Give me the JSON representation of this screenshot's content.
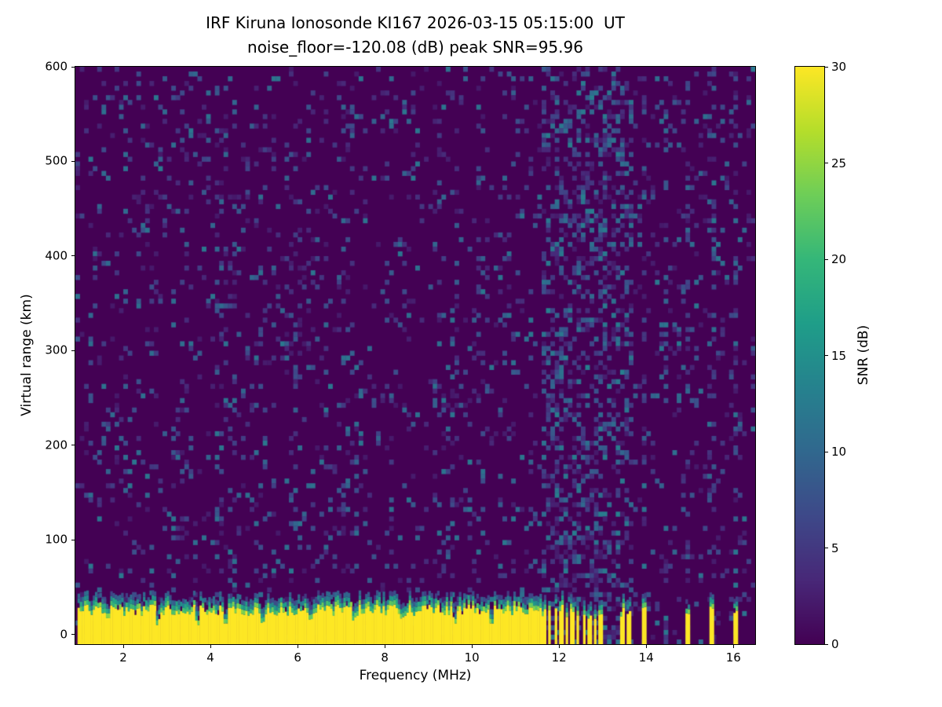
{
  "chart_data": {
    "type": "heatmap",
    "title": "IRF Kiruna Ionosonde KI167 2026-03-15 05:15:00  UT",
    "subtitle": "noise_floor=-120.08 (dB) peak SNR=95.96",
    "xlabel": "Frequency (MHz)",
    "ylabel": "Virtual range (km)",
    "station": "KI167",
    "timestamp_ut": "2026-03-15 05:15:00",
    "noise_floor_db": -120.08,
    "peak_snr_db": 95.96,
    "x_range": [
      0.9,
      16.5
    ],
    "y_range": [
      -10,
      600
    ],
    "x_ticks": [
      2,
      4,
      6,
      8,
      10,
      12,
      14,
      16
    ],
    "y_ticks": [
      0,
      100,
      200,
      300,
      400,
      500,
      600
    ],
    "colorbar": {
      "label": "SNR (dB)",
      "range": [
        0,
        30
      ],
      "ticks": [
        0,
        5,
        10,
        15,
        20,
        25,
        30
      ]
    },
    "colormap": {
      "name": "viridis",
      "stops": [
        "#440154",
        "#482878",
        "#3e4989",
        "#31688e",
        "#26828e",
        "#1f9e89",
        "#35b779",
        "#6ece58",
        "#b5de2b",
        "#fde725"
      ]
    },
    "background_value_db": 0,
    "noise": {
      "seed": 42,
      "density": 0.1,
      "snr_min": 2,
      "snr_max": 12
    },
    "ground_echo": {
      "description": "saturated ground/transmitter return band at low virtual range",
      "freq_start": 0.95,
      "freq_end": 11.62,
      "top_km_base": 26,
      "top_km_jitter": 6,
      "fringe_km": 17,
      "notches": [
        1.65,
        2.8,
        3.7,
        4.35,
        5.2,
        6.3,
        7.3,
        8.4,
        9.6,
        10.45
      ],
      "comb_start": 11.62,
      "comb_end": 13.05,
      "comb_period_mhz": 0.13,
      "comb_duty": 0.54,
      "isolated_bars": [
        13.45,
        13.6,
        13.95,
        14.95,
        15.5,
        16.05
      ]
    },
    "interference": {
      "band": [
        11.62,
        13.45
      ],
      "band_noise_density": 0.36,
      "columns": [
        13.45,
        13.6,
        13.95,
        14.45,
        14.95,
        15.5,
        16.05
      ],
      "column_noise_density": 0.28,
      "faint_columns": [
        3.45,
        4.25,
        4.45,
        5.9,
        7.15,
        9.35,
        10.2
      ],
      "faint_noise_density": 0.16
    },
    "colors": {
      "figure_background": "#ffffff",
      "text": "#000000",
      "frame": "#000000"
    }
  }
}
